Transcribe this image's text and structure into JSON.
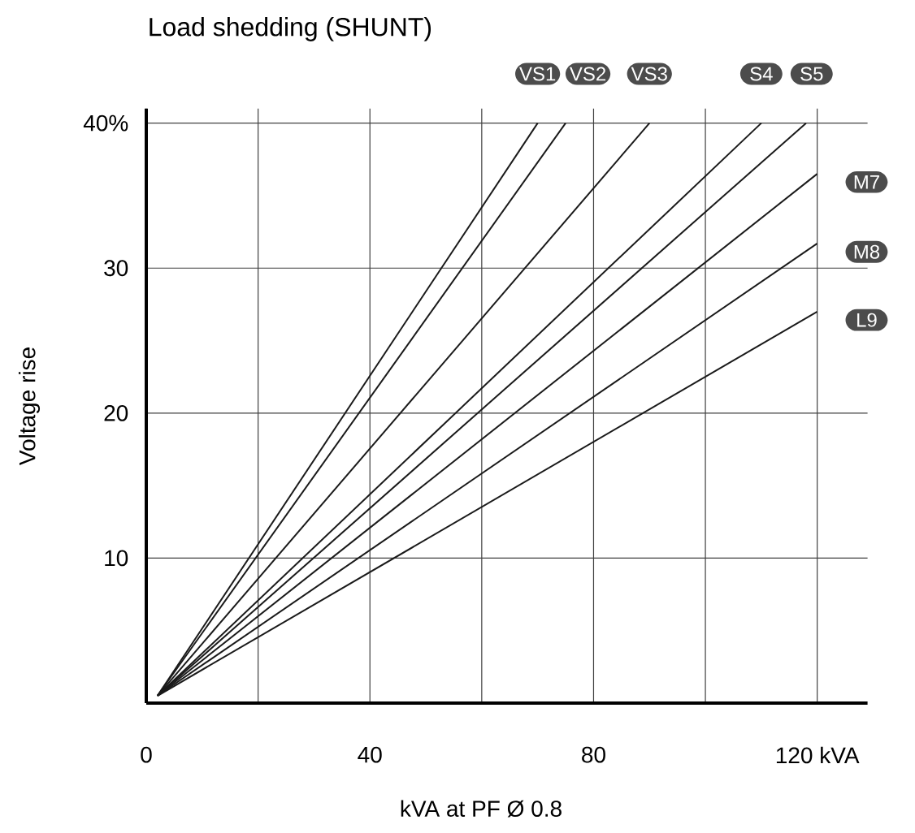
{
  "chart_data": {
    "type": "line",
    "title": "Load shedding (SHUNT)",
    "xlabel": "kVA at PF Ø 0.8",
    "ylabel": "Voltage rise",
    "xlim": [
      0,
      129
    ],
    "ylim": [
      0,
      41
    ],
    "xticks": [
      0,
      {
        "value": 20,
        "label": null
      },
      40,
      {
        "value": 60,
        "label": null
      },
      80,
      {
        "value": 100,
        "label": null
      },
      {
        "value": 120,
        "label": "120 kVA"
      }
    ],
    "yticks": [
      10,
      20,
      30,
      {
        "value": 40,
        "label": "40%"
      }
    ],
    "grid": true,
    "series": [
      {
        "name": "VS1",
        "color": "#1a1a1a",
        "x": [
          2,
          70
        ],
        "values": [
          0.5,
          40
        ]
      },
      {
        "name": "VS2",
        "color": "#1a1a1a",
        "x": [
          2,
          75
        ],
        "values": [
          0.5,
          40
        ]
      },
      {
        "name": "VS3",
        "color": "#1a1a1a",
        "x": [
          2,
          90
        ],
        "values": [
          0.5,
          40
        ]
      },
      {
        "name": "S4",
        "color": "#1a1a1a",
        "x": [
          2,
          110
        ],
        "values": [
          0.5,
          40
        ]
      },
      {
        "name": "S5",
        "color": "#1a1a1a",
        "x": [
          2,
          118
        ],
        "values": [
          0.5,
          40
        ]
      },
      {
        "name": "M7",
        "color": "#1a1a1a",
        "x": [
          2,
          120
        ],
        "values": [
          0.5,
          36.5
        ]
      },
      {
        "name": "M8",
        "color": "#1a1a1a",
        "x": [
          2,
          120
        ],
        "values": [
          0.5,
          31.7
        ]
      },
      {
        "name": "L9",
        "color": "#1a1a1a",
        "x": [
          2,
          120
        ],
        "values": [
          0.5,
          27.0
        ]
      }
    ]
  }
}
